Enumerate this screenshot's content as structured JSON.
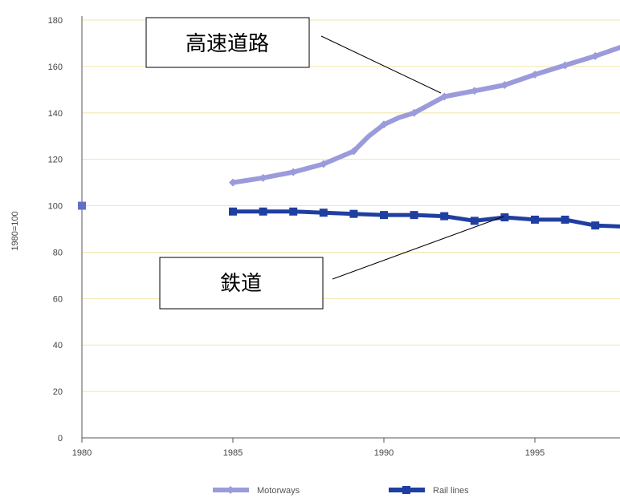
{
  "chart_data": {
    "type": "line",
    "ylabel": "1980=100",
    "xlabel": "",
    "title": "",
    "xlim": [
      1980,
      1998
    ],
    "ylim": [
      0,
      180
    ],
    "x_ticks": [
      "1980",
      "1985",
      "1990",
      "1995"
    ],
    "y_ticks": [
      "0",
      "20",
      "40",
      "60",
      "80",
      "100",
      "120",
      "140",
      "160",
      "180"
    ],
    "grid": "horizontal",
    "grid_color": "#f0e6a8",
    "legend_position": "bottom",
    "series": [
      {
        "name": "Motorways",
        "color": "#9b9bdc",
        "marker": "diamond",
        "points": [
          [
            1985,
            110
          ],
          [
            1986,
            112
          ],
          [
            1987,
            114.5
          ],
          [
            1988,
            118
          ],
          [
            1989,
            123.5
          ],
          [
            1989.5,
            130
          ],
          [
            1990,
            135
          ],
          [
            1990.5,
            138
          ],
          [
            1991,
            140
          ],
          [
            1992,
            147
          ],
          [
            1993,
            149.5
          ],
          [
            1994,
            152
          ],
          [
            1995,
            156.5
          ],
          [
            1996,
            160.5
          ],
          [
            1997,
            164.5
          ],
          [
            1998,
            169
          ]
        ]
      },
      {
        "name": "Rail lines",
        "color": "#1f3fa0",
        "marker": "square",
        "points": [
          [
            1985,
            97.5
          ],
          [
            1986,
            97.5
          ],
          [
            1987,
            97.5
          ],
          [
            1988,
            97
          ],
          [
            1989,
            96.5
          ],
          [
            1990,
            96
          ],
          [
            1991,
            96
          ],
          [
            1992,
            95.5
          ],
          [
            1993,
            93.5
          ],
          [
            1994,
            95
          ],
          [
            1995,
            94
          ],
          [
            1996,
            94
          ],
          [
            1997,
            91.5
          ],
          [
            1998,
            91
          ]
        ]
      }
    ],
    "base_point": {
      "x": 1980,
      "y": 100,
      "color": "#5f6fc9"
    },
    "annotations": [
      {
        "text": "高速道路",
        "series": "Motorways"
      },
      {
        "text": "鉄道",
        "series": "Rail lines"
      }
    ]
  }
}
